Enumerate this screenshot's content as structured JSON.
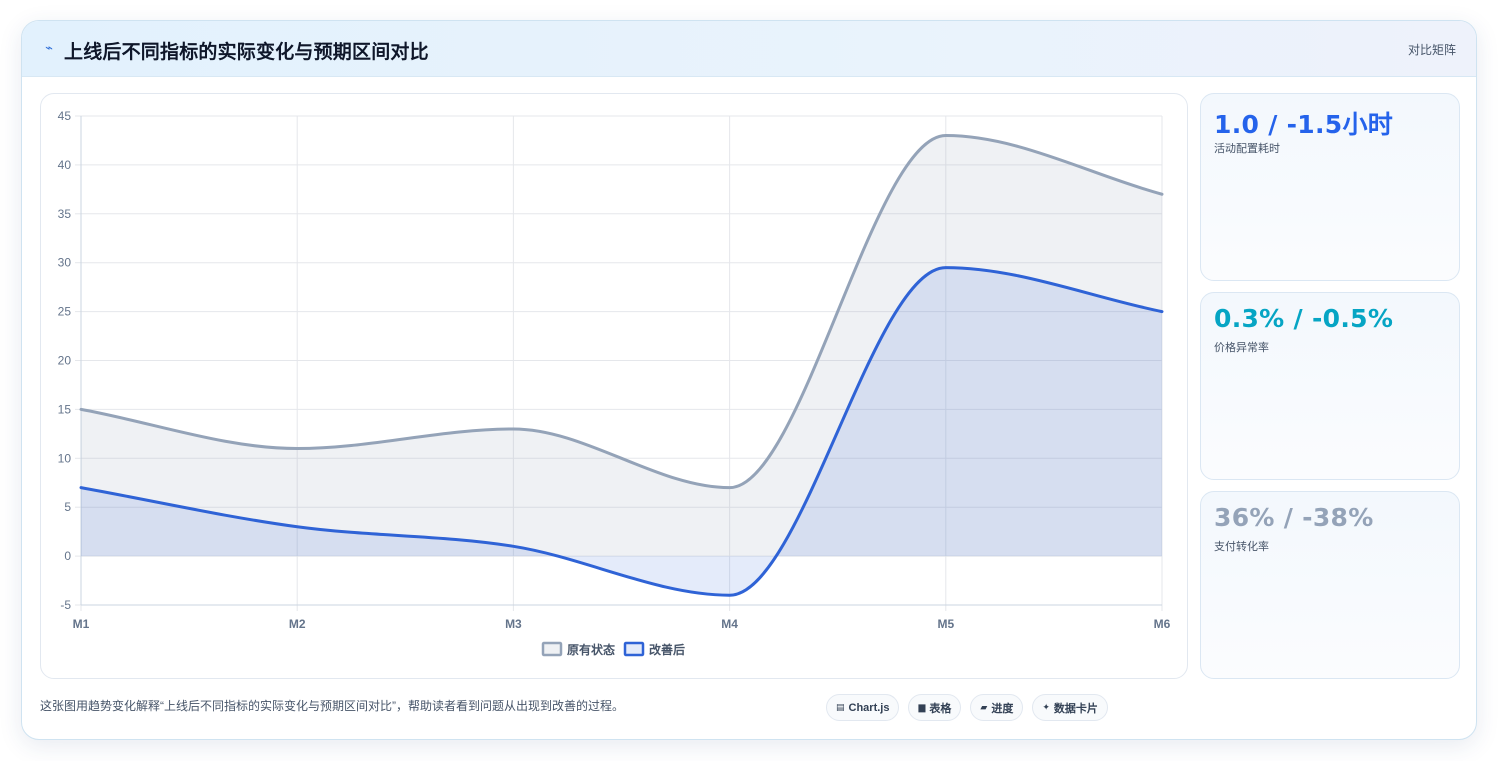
{
  "header": {
    "icon": "lightning-icon",
    "title": "上线后不同指标的实际变化与预期区间对比",
    "tag": "对比矩阵"
  },
  "chart_data": {
    "type": "area",
    "categories": [
      "M1",
      "M2",
      "M3",
      "M4",
      "M5",
      "M6"
    ],
    "ylim": [
      -5,
      45
    ],
    "yticks": [
      45,
      40,
      35,
      30,
      25,
      20,
      15,
      10,
      5,
      0,
      -5
    ],
    "grid": true,
    "legend_position": "bottom",
    "series": [
      {
        "name": "原有状态",
        "values": [
          15,
          11,
          13,
          7,
          43,
          37
        ],
        "color": "#94a3b8",
        "fill": "rgba(148,163,184,0.15)"
      },
      {
        "name": "改善后",
        "values": [
          7,
          3,
          1,
          -4,
          29.5,
          25
        ],
        "color": "#2f63d6",
        "fill": "rgba(47,99,214,0.13)"
      }
    ]
  },
  "kpis": [
    {
      "value": "1.0 / -1.5小时",
      "label": "活动配置耗时",
      "color": "#2563eb"
    },
    {
      "value": "0.3% / -0.5%",
      "label": "价格异常率",
      "color": "#06a5c4"
    },
    {
      "value": "36% / -38%",
      "label": "支付转化率",
      "color": "#94a3b8"
    }
  ],
  "footer": {
    "note": "这张图用趋势变化解释“上线后不同指标的实际变化与预期区间对比”，帮助读者看到问题从出现到改善的过程。",
    "chips": [
      {
        "icon": "chart-icon",
        "glyph": "▤",
        "label": "Chart.js"
      },
      {
        "icon": "table-icon",
        "glyph": "▆",
        "label": "表格"
      },
      {
        "icon": "progress-icon",
        "glyph": "▰",
        "label": "进度"
      },
      {
        "icon": "sparkle-icon",
        "glyph": "✦",
        "label": "数据卡片"
      }
    ]
  }
}
